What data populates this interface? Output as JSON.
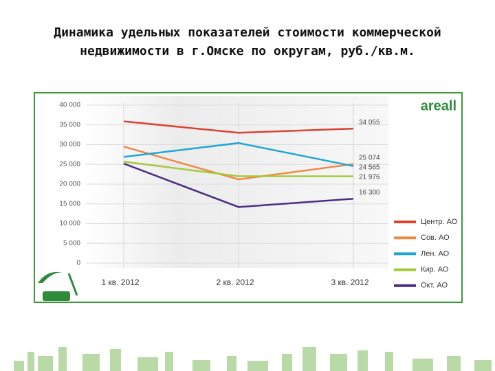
{
  "title": "Динамика удельных показателей стоимости коммерческой недвижимости в г.Омске по округам, руб./кв.м.",
  "chart_data": {
    "type": "line",
    "brand": "areall",
    "categories": [
      "1 кв. 2012",
      "2 кв. 2012",
      "3 кв. 2012"
    ],
    "series": [
      {
        "name": "Центр. АО",
        "color": "#e0412f",
        "values": [
          35900,
          33000,
          34055
        ],
        "value_labels": [
          null,
          null,
          "34 055"
        ]
      },
      {
        "name": "Сов. АО",
        "color": "#ee8a48",
        "values": [
          29500,
          21200,
          25074
        ],
        "value_labels": [
          null,
          null,
          "25 074"
        ]
      },
      {
        "name": "Лен. АО",
        "color": "#1fa6d6",
        "values": [
          26900,
          30400,
          24565
        ],
        "value_labels": [
          null,
          null,
          "24 565"
        ]
      },
      {
        "name": "Кир. АО",
        "color": "#a5c93b",
        "values": [
          25700,
          22000,
          21976
        ],
        "value_labels": [
          null,
          null,
          "21 976"
        ]
      },
      {
        "name": "Окт. АО",
        "color": "#4b2d83",
        "values": [
          25200,
          14200,
          16300
        ],
        "value_labels": [
          null,
          null,
          "16 300"
        ]
      }
    ],
    "ylim": [
      0,
      40000
    ],
    "yticks": [
      0,
      {
        "value": 5000,
        "label": "5 000"
      },
      {
        "value": 10000,
        "label": "10 000"
      },
      {
        "value": 15000,
        "label": "15 000"
      },
      {
        "value": 20000,
        "label": "20 000"
      },
      {
        "value": 25000,
        "label": "25 000"
      },
      {
        "value": 30000,
        "label": "30 000"
      },
      {
        "value": 35000,
        "label": "35 000"
      },
      {
        "value": 40000,
        "label": "40 000"
      }
    ],
    "grid": true,
    "legend": "bottom-right"
  }
}
